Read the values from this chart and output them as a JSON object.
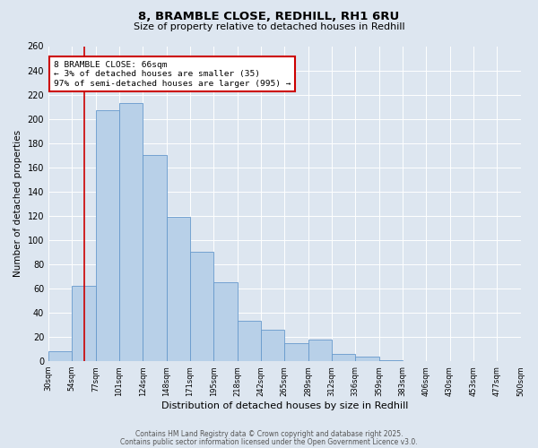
{
  "title": "8, BRAMBLE CLOSE, REDHILL, RH1 6RU",
  "subtitle": "Size of property relative to detached houses in Redhill",
  "xlabel": "Distribution of detached houses by size in Redhill",
  "ylabel": "Number of detached properties",
  "bin_labels": [
    "30sqm",
    "54sqm",
    "77sqm",
    "101sqm",
    "124sqm",
    "148sqm",
    "171sqm",
    "195sqm",
    "218sqm",
    "242sqm",
    "265sqm",
    "289sqm",
    "312sqm",
    "336sqm",
    "359sqm",
    "383sqm",
    "406sqm",
    "430sqm",
    "453sqm",
    "477sqm",
    "500sqm"
  ],
  "bar_values": [
    8,
    62,
    207,
    213,
    170,
    119,
    90,
    65,
    33,
    26,
    15,
    18,
    6,
    4,
    1,
    0,
    0,
    0,
    0,
    0
  ],
  "bar_color": "#b8d0e8",
  "bar_edge_color": "#6699cc",
  "vline_color": "#cc0000",
  "annotation_text": "8 BRAMBLE CLOSE: 66sqm\n← 3% of detached houses are smaller (35)\n97% of semi-detached houses are larger (995) →",
  "annotation_box_color": "#ffffff",
  "annotation_box_edge": "#cc0000",
  "ylim": [
    0,
    260
  ],
  "yticks": [
    0,
    20,
    40,
    60,
    80,
    100,
    120,
    140,
    160,
    180,
    200,
    220,
    240,
    260
  ],
  "footer1": "Contains HM Land Registry data © Crown copyright and database right 2025.",
  "footer2": "Contains public sector information licensed under the Open Government Licence v3.0.",
  "bg_color": "#dde6f0",
  "plot_bg_color": "#dde6f0",
  "bin_starts": [
    30,
    54,
    77,
    101,
    124,
    148,
    171,
    195,
    218,
    242,
    265,
    289,
    312,
    336,
    359,
    383,
    406,
    430,
    453,
    477,
    500
  ],
  "prop_size": 66
}
